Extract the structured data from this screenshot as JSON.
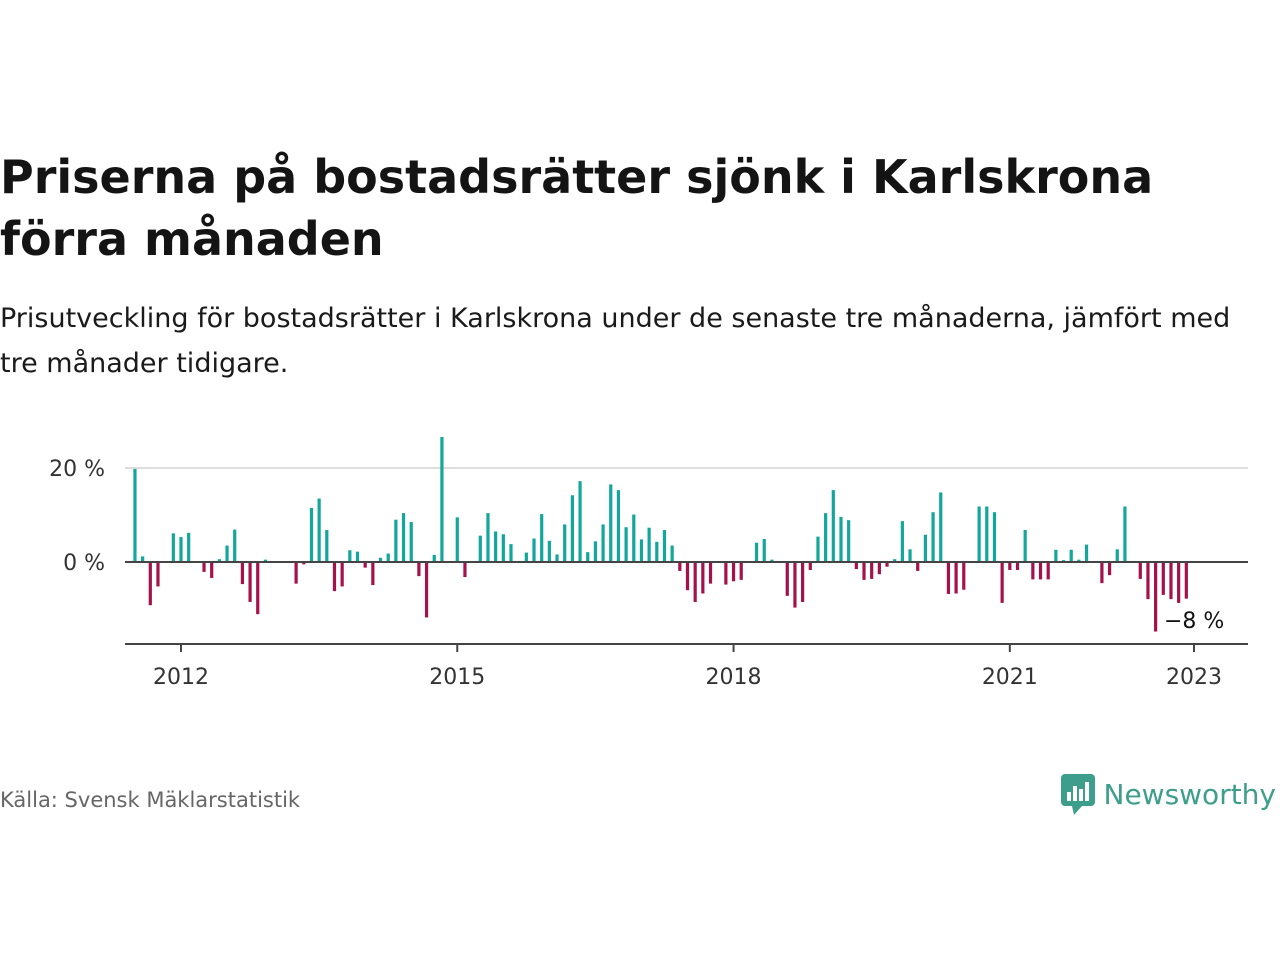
{
  "title": "Priserna på bostadsrätter sjönk i Karlskrona förra månaden",
  "subtitle": "Prisutveckling för bostadsrätter i Karlskrona under de senaste tre månaderna, jämfört med tre månader tidigare.",
  "source": "Källa: Svensk Mäklarstatistik",
  "brand": "Newsworthy",
  "colors": {
    "positive": "#13a69a",
    "negative": "#a5114b",
    "brand": "#3e9e8c"
  },
  "chart_data": {
    "type": "bar",
    "x_start": "2012-01",
    "x_end": "2023-01",
    "ylim": [
      -17,
      27
    ],
    "y_ticks": [
      {
        "value": 20,
        "label": "20 %"
      },
      {
        "value": 0,
        "label": "0 %"
      }
    ],
    "x_ticks": [
      {
        "value": "2012-01",
        "label": "2012"
      },
      {
        "value": "2015-01",
        "label": "2015"
      },
      {
        "value": "2018-01",
        "label": "2018"
      },
      {
        "value": "2021-01",
        "label": "2021"
      },
      {
        "value": "2023-01",
        "label": "2023"
      }
    ],
    "annotation": {
      "x": "2023-01",
      "label": "−8 %"
    },
    "values": [
      19.8,
      1.2,
      -9.2,
      -5.2,
      0,
      6.1,
      5.3,
      6.2,
      0,
      -2.1,
      -3.4,
      0.6,
      3.5,
      6.9,
      -4.7,
      -8.5,
      -11.1,
      0.5,
      0,
      0,
      0,
      -4.6,
      -0.5,
      11.5,
      13.5,
      6.8,
      -6.2,
      -5.2,
      2.5,
      2.2,
      -1.2,
      -4.9,
      0.9,
      1.8,
      9.0,
      10.4,
      8.5,
      -3.0,
      -11.8,
      1.5,
      26.6,
      0,
      9.5,
      -3.2,
      0,
      5.6,
      10.4,
      6.5,
      5.9,
      3.8,
      0,
      2.0,
      5.0,
      10.2,
      4.5,
      1.6,
      8.0,
      14.2,
      17.2,
      2.1,
      4.4,
      8.0,
      16.5,
      15.3,
      7.4,
      10.1,
      4.8,
      7.3,
      4.3,
      6.8,
      3.5,
      -1.9,
      -6.0,
      -8.5,
      -6.7,
      -4.6,
      0,
      -4.8,
      -4.1,
      -3.8,
      0,
      4.1,
      4.9,
      0.5,
      0,
      -7.2,
      -9.7,
      -8.5,
      -1.7,
      5.4,
      10.4,
      15.3,
      9.6,
      8.9,
      -1.5,
      -3.8,
      -3.6,
      -2.6,
      -1.0,
      0.6,
      8.7,
      2.7,
      -1.9,
      5.8,
      10.6,
      14.8,
      -6.8,
      -6.7,
      -5.9,
      0,
      11.8,
      11.8,
      10.6,
      -8.7,
      -1.7,
      -1.7,
      6.8,
      -3.7,
      -3.7,
      -3.7,
      2.6,
      0.4,
      2.6,
      0.5,
      3.7,
      0,
      -4.5,
      -2.8,
      2.7,
      11.8,
      0,
      -3.6,
      -7.9,
      -14.8,
      -7.0,
      -7.9,
      -8.7,
      -7.8
    ]
  }
}
